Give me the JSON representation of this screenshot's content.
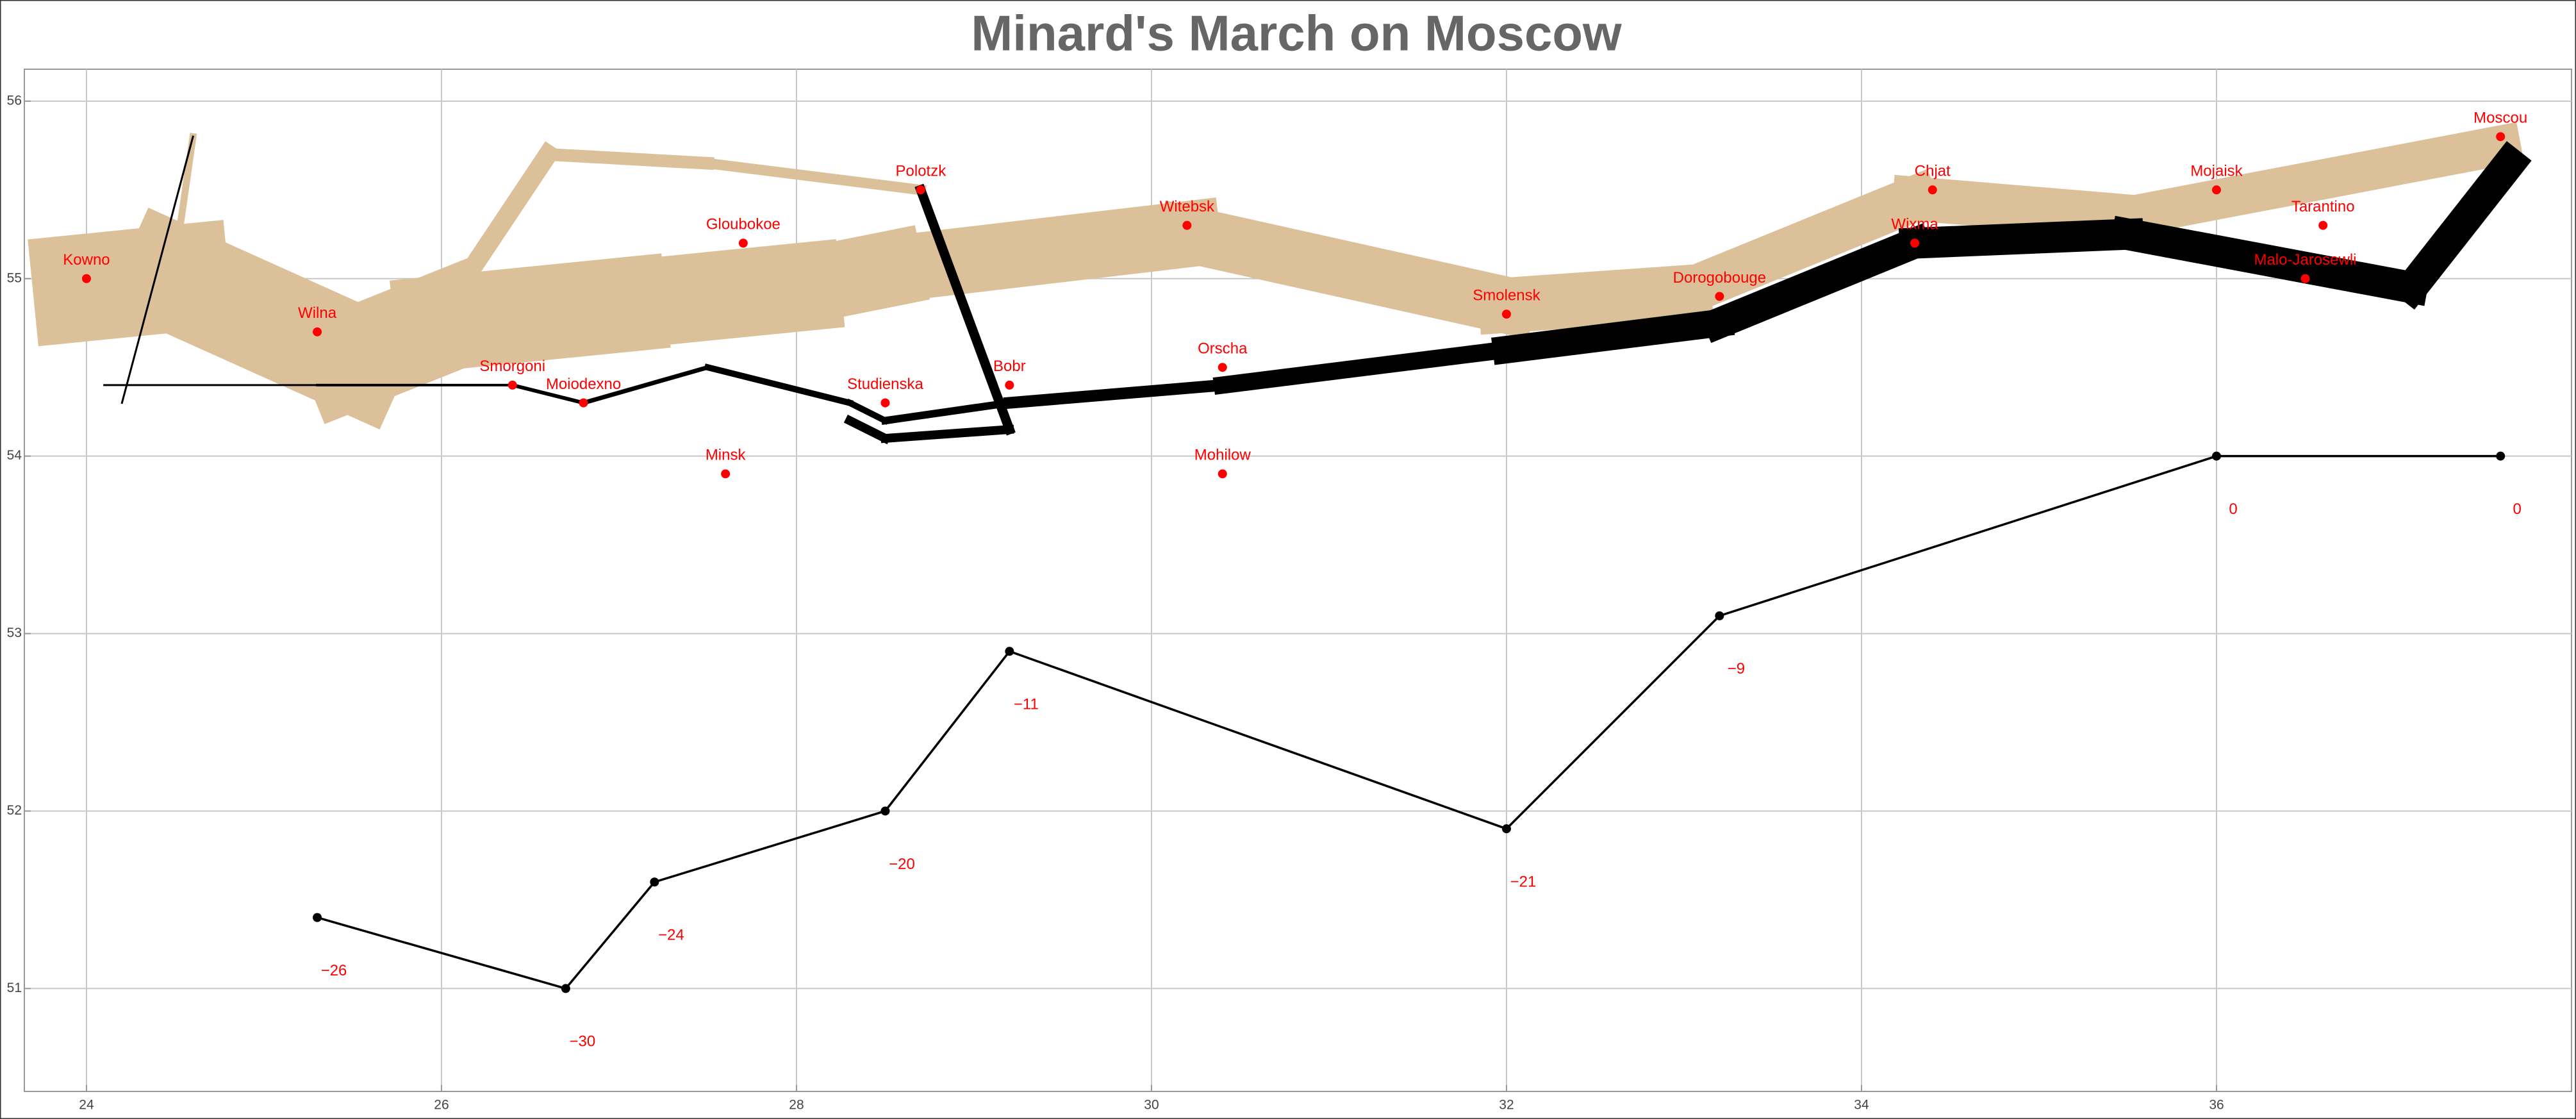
{
  "chart_data": {
    "type": "flow",
    "title": "Minard's March on Moscow",
    "xlim": [
      23.65,
      38.0
    ],
    "ylim": [
      50.42,
      56.18
    ],
    "xticks": [
      24,
      26,
      28,
      30,
      32,
      34,
      36
    ],
    "yticks": [
      51,
      52,
      53,
      54,
      55,
      56
    ],
    "grid": true,
    "y2lim": [
      -35.8,
      21.8
    ],
    "army": [
      {
        "color": "#dcc09a",
        "x": [
          24.0,
          24.5,
          25.5,
          26.0,
          27.0,
          28.0,
          28.5,
          30.2,
          32.0,
          33.0,
          34.3,
          35.5,
          37.6
        ],
        "y": [
          54.95,
          55.0,
          54.55,
          54.75,
          54.85,
          54.95,
          55.05,
          55.25,
          54.85,
          54.92,
          55.45,
          55.35,
          55.75
        ],
        "survivors": [
          340000,
          340000,
          320000,
          300000,
          280000,
          240000,
          210000,
          180000,
          175000,
          145000,
          140000,
          127100,
          100000
        ]
      },
      {
        "color": "#dcc09a",
        "x": [
          26.0,
          26.6,
          27.5,
          28.7
        ],
        "y": [
          54.8,
          55.7,
          55.65,
          55.5
        ],
        "survivors": [
          60000,
          40000,
          33000,
          33000
        ]
      },
      {
        "color": "#dcc09a",
        "x": [
          24.5,
          24.6
        ],
        "y": [
          55.1,
          55.8
        ],
        "survivors": [
          22000,
          22000
        ]
      },
      {
        "color": "#000000",
        "x": [
          24.6,
          24.2
        ],
        "y": [
          55.8,
          54.3
        ],
        "survivors": [
          6000,
          6000
        ]
      },
      {
        "color": "#000000",
        "x": [
          28.7,
          29.2,
          28.5,
          28.3
        ],
        "y": [
          55.5,
          54.15,
          54.1,
          54.2
        ],
        "survivors": [
          30000,
          28000,
          28000,
          28000
        ]
      },
      {
        "color": "#000000",
        "x": [
          37.65,
          37.1,
          35.5,
          34.3,
          33.2,
          32.0,
          30.4,
          29.2,
          28.5,
          28.3,
          27.5,
          26.8,
          26.4,
          25.3,
          24.1
        ],
        "y": [
          55.65,
          54.95,
          55.25,
          55.2,
          54.75,
          54.6,
          54.4,
          54.3,
          54.2,
          54.3,
          54.5,
          54.3,
          54.4,
          54.4,
          54.4
        ],
        "survivors": [
          100000,
          100000,
          98000,
          97000,
          87000,
          55000,
          37000,
          24000,
          20000,
          20000,
          14000,
          12000,
          8000,
          4000,
          4000
        ]
      }
    ],
    "cities": {
      "color": "#ff0000",
      "names": [
        "Kowno",
        "Wilna",
        "Smorgoni",
        "Moiodexno",
        "Gloubokoe",
        "Minsk",
        "Studienska",
        "Polotzk",
        "Bobr",
        "Witebsk",
        "Orscha",
        "Mohilow",
        "Smolensk",
        "Dorogobouge",
        "Wixma",
        "Chjat",
        "Mojaisk",
        "Tarantino",
        "Malo-Jarosewli",
        "Moscou"
      ],
      "x": [
        24.0,
        25.3,
        26.4,
        26.8,
        27.7,
        27.6,
        28.5,
        28.7,
        29.2,
        30.2,
        30.4,
        30.4,
        32.0,
        33.2,
        34.3,
        34.4,
        36.0,
        36.6,
        36.5,
        37.6
      ],
      "y": [
        55.0,
        54.7,
        54.4,
        54.3,
        55.2,
        53.9,
        54.3,
        55.5,
        54.4,
        55.3,
        54.5,
        53.9,
        54.8,
        54.9,
        55.2,
        55.5,
        55.5,
        55.3,
        55.0,
        55.8
      ]
    },
    "temperature": {
      "axis": "y2",
      "color": "#000000",
      "label_color": "#ff0000",
      "x": [
        25.3,
        26.7,
        27.2,
        28.5,
        29.2,
        32.0,
        33.2,
        36.0,
        37.6
      ],
      "values": [
        -26,
        -30,
        -24,
        -20,
        -11,
        -21,
        -9,
        0,
        0
      ],
      "value_labels": [
        "−26",
        "−30",
        "−24",
        "−20",
        "−11",
        "−21",
        "−9",
        "0",
        "0"
      ]
    }
  }
}
